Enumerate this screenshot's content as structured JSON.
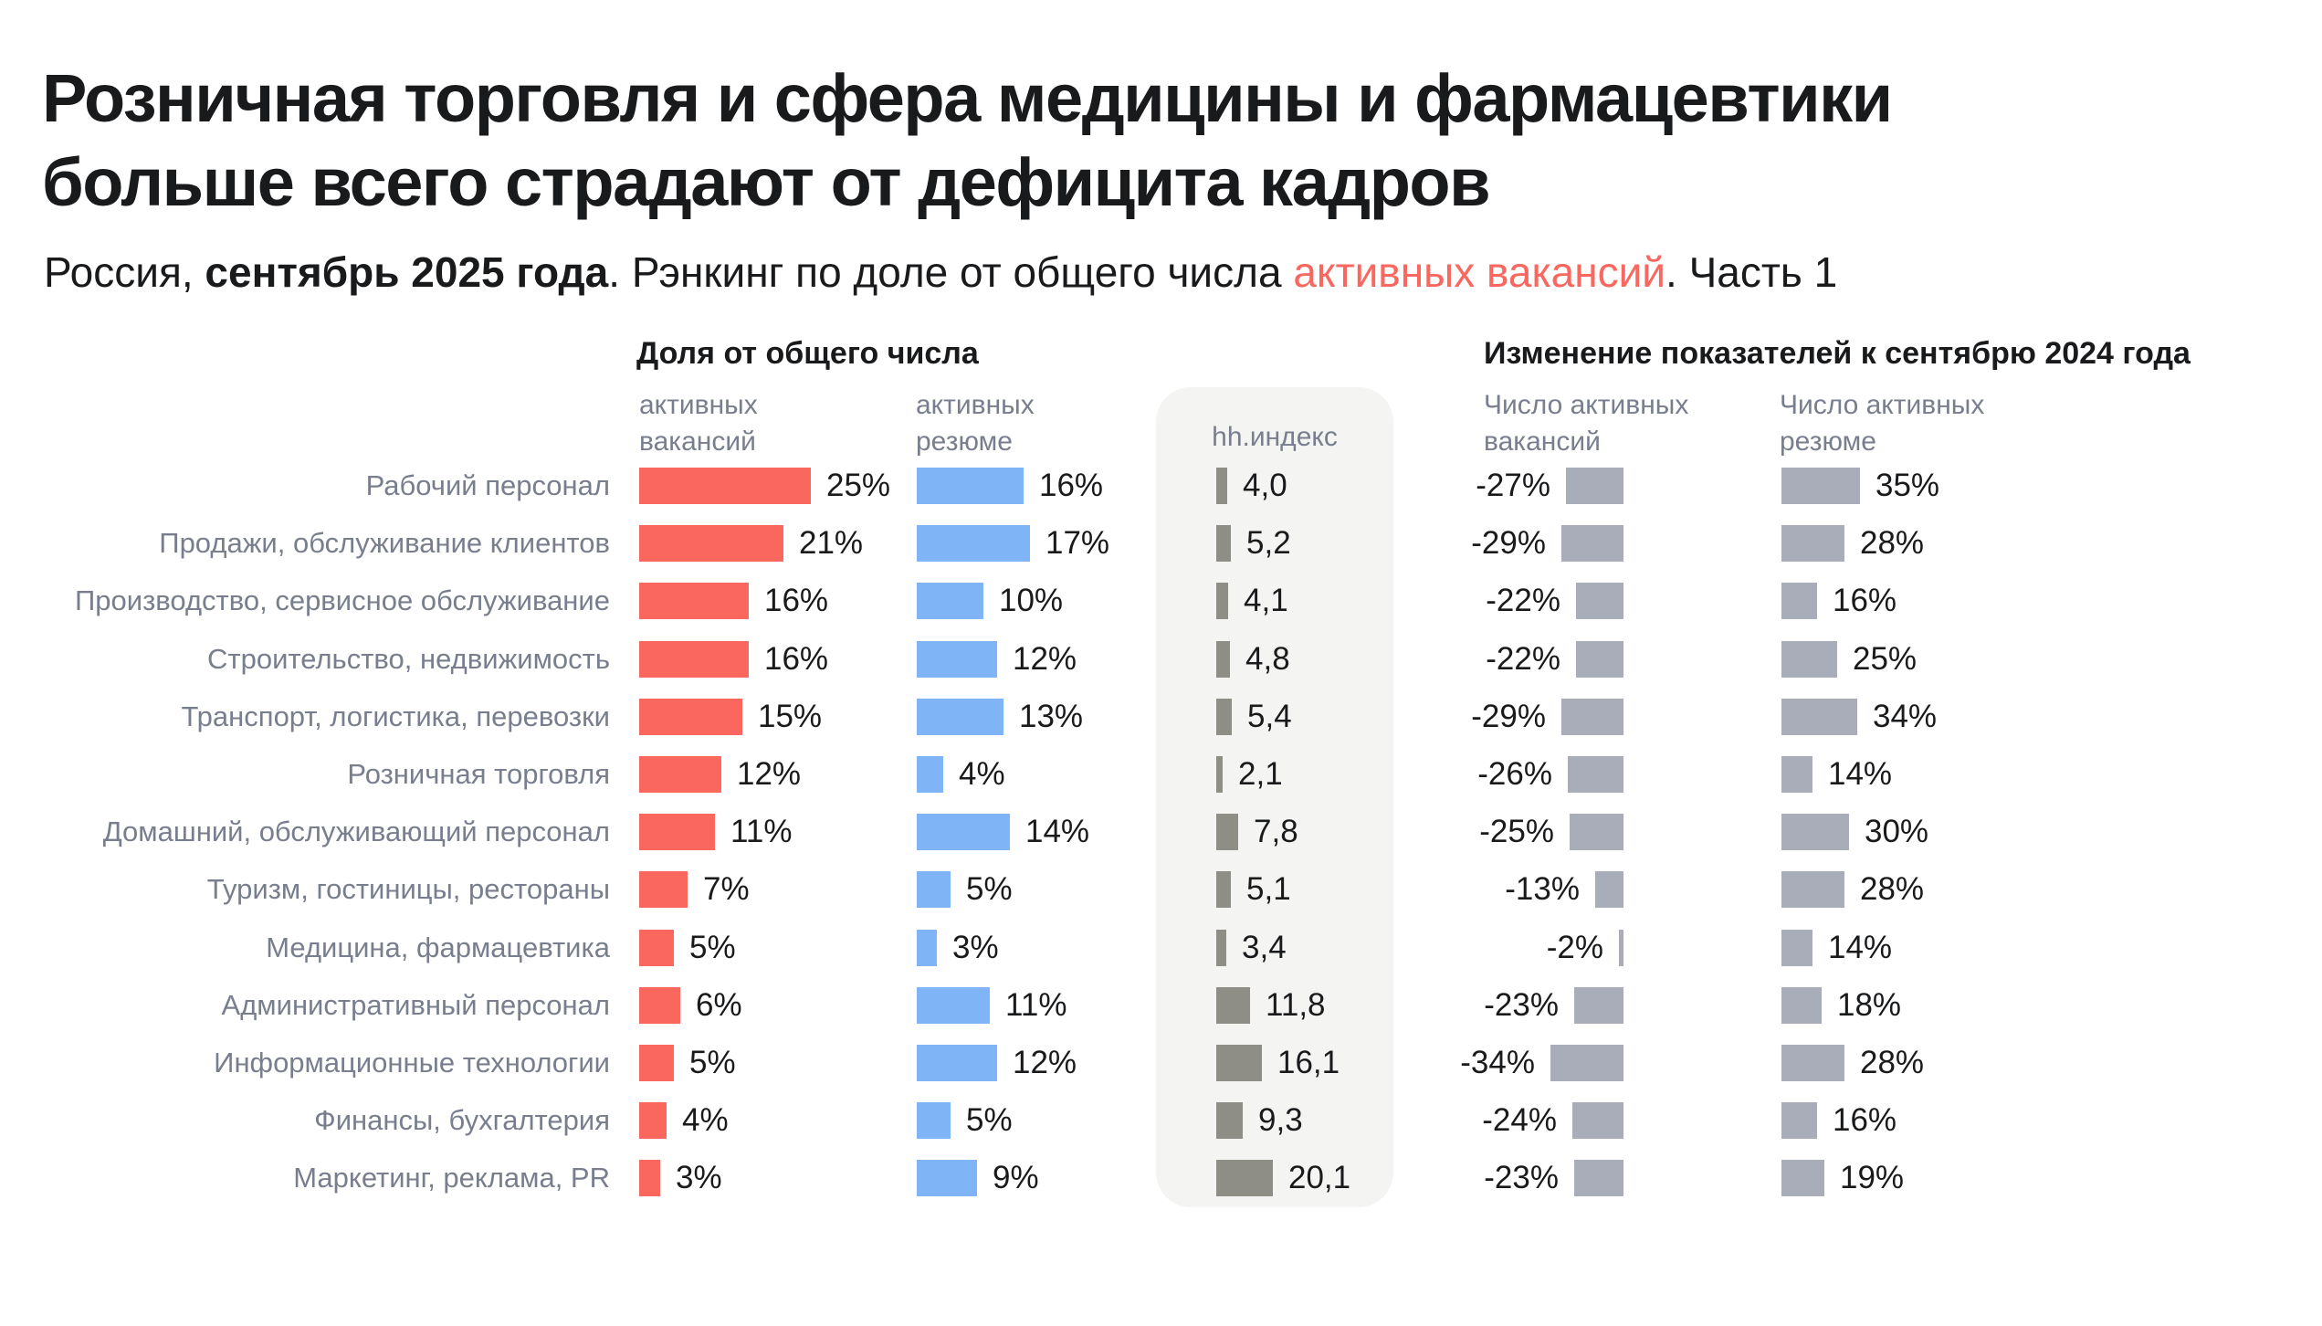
{
  "title": {
    "line1": "Розничная торговля и сфера медицины и фармацевтики",
    "line2": "больше всего страдают от дефицита кадров"
  },
  "subtitle": {
    "prefix": "Россия, ",
    "bold_date": "сентябрь 2025 года",
    "middle": ". Рэнкинг по доле от общего числа ",
    "highlight": "активных вакансий",
    "suffix": ". Часть 1"
  },
  "sections": {
    "share": {
      "header": "Доля от общего числа",
      "col_vacancies_line1": "активных",
      "col_vacancies_line2": "вакансий",
      "col_resumes_line1": "активных",
      "col_resumes_line2": "резюме"
    },
    "hh_index": {
      "header": "hh.индекс"
    },
    "change": {
      "header": "Изменение показателей к сентябрю 2024 года",
      "col_vacancies_line1": "Число активных",
      "col_vacancies_line2": "вакансий",
      "col_resumes_line1": "Число активных",
      "col_resumes_line2": "резюме"
    }
  },
  "colors": {
    "ink": "#191a1c",
    "muted": "#787e8e",
    "red": "#f9675f",
    "blue": "#7fb5f7",
    "gray": "#a9adba",
    "hh": "#8e8e86",
    "panel": "#f4f4f2"
  },
  "chart_data": {
    "type": "bar",
    "orientation": "horizontal",
    "title": "Розничная торговля и сфера медицины и фармацевтики больше всего страдают от дефицита кадров",
    "subtitle": "Россия, сентябрь 2025 года. Рэнкинг по доле от общего числа активных вакансий. Часть 1",
    "categories": [
      "Рабочий персонал",
      "Продажи, обслуживание клиентов",
      "Производство, сервисное обслуживание",
      "Строительство, недвижимость",
      "Транспорт, логистика, перевозки",
      "Розничная торговля",
      "Домашний, обслуживающий персонал",
      "Туризм, гостиницы, рестораны",
      "Медицина, фармацевтика",
      "Административный персонал",
      "Информационные технологии",
      "Финансы, бухгалтерия",
      "Маркетинг, реклама, PR"
    ],
    "series": [
      {
        "name": "Доля от общего числа активных вакансий, %",
        "values": [
          25,
          21,
          16,
          16,
          15,
          12,
          11,
          7,
          5,
          6,
          5,
          4,
          3
        ]
      },
      {
        "name": "Доля от общего числа активных резюме, %",
        "values": [
          16,
          17,
          10,
          12,
          13,
          4,
          14,
          5,
          3,
          11,
          12,
          5,
          9
        ]
      },
      {
        "name": "hh.индекс",
        "values": [
          4.0,
          5.2,
          4.1,
          4.8,
          5.4,
          2.1,
          7.8,
          5.1,
          3.4,
          11.8,
          16.1,
          9.3,
          20.1
        ]
      },
      {
        "name": "Изменение числа активных вакансий к сентябрю 2024 года, %",
        "values": [
          -27,
          -29,
          -22,
          -22,
          -29,
          -26,
          -25,
          -13,
          -2,
          -23,
          -34,
          -24,
          -23
        ]
      },
      {
        "name": "Изменение числа активных резюме к сентябрю 2024 года, %",
        "values": [
          35,
          28,
          16,
          25,
          34,
          14,
          30,
          28,
          14,
          18,
          28,
          16,
          19
        ]
      }
    ],
    "legend_position": "none",
    "grid": false
  }
}
